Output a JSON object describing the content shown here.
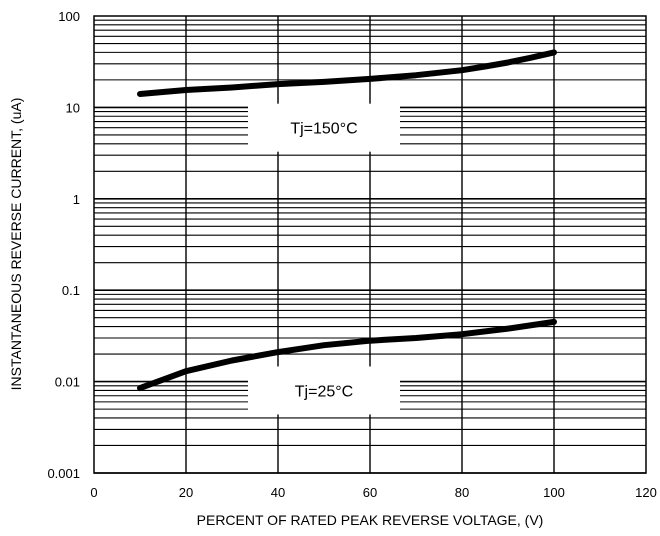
{
  "chart_data": {
    "type": "line",
    "title": "",
    "xlabel": "PERCENT OF RATED PEAK REVERSE VOLTAGE, (V)",
    "ylabel": "INSTANTANEOUS REVERSE CURRENT, (uA)",
    "xlim": [
      0,
      120
    ],
    "ylim": [
      0.001,
      100
    ],
    "y_scale": "log",
    "grid": true,
    "x_ticks": [
      "0",
      "20",
      "40",
      "60",
      "80",
      "100",
      "120"
    ],
    "y_ticks": [
      "0.001",
      "0.01",
      "0.1",
      "1",
      "10",
      "100"
    ],
    "series": [
      {
        "x": [
          10,
          20,
          30,
          40,
          50,
          60,
          70,
          80,
          85,
          90,
          95,
          100
        ],
        "y": [
          14,
          15.5,
          16.5,
          18,
          19,
          20.5,
          22.5,
          25.5,
          28,
          31,
          35,
          40
        ]
      },
      {
        "x": [
          10,
          20,
          30,
          40,
          50,
          60,
          70,
          80,
          90,
          100
        ],
        "y": [
          0.0085,
          0.013,
          0.017,
          0.021,
          0.025,
          0.028,
          0.03,
          0.033,
          0.038,
          0.045
        ]
      }
    ],
    "annotations": [
      {
        "text": "Tj=150°C",
        "x": 50,
        "y": 6
      },
      {
        "text": "Tj=25°C",
        "x": 50,
        "y": 0.008
      }
    ]
  }
}
